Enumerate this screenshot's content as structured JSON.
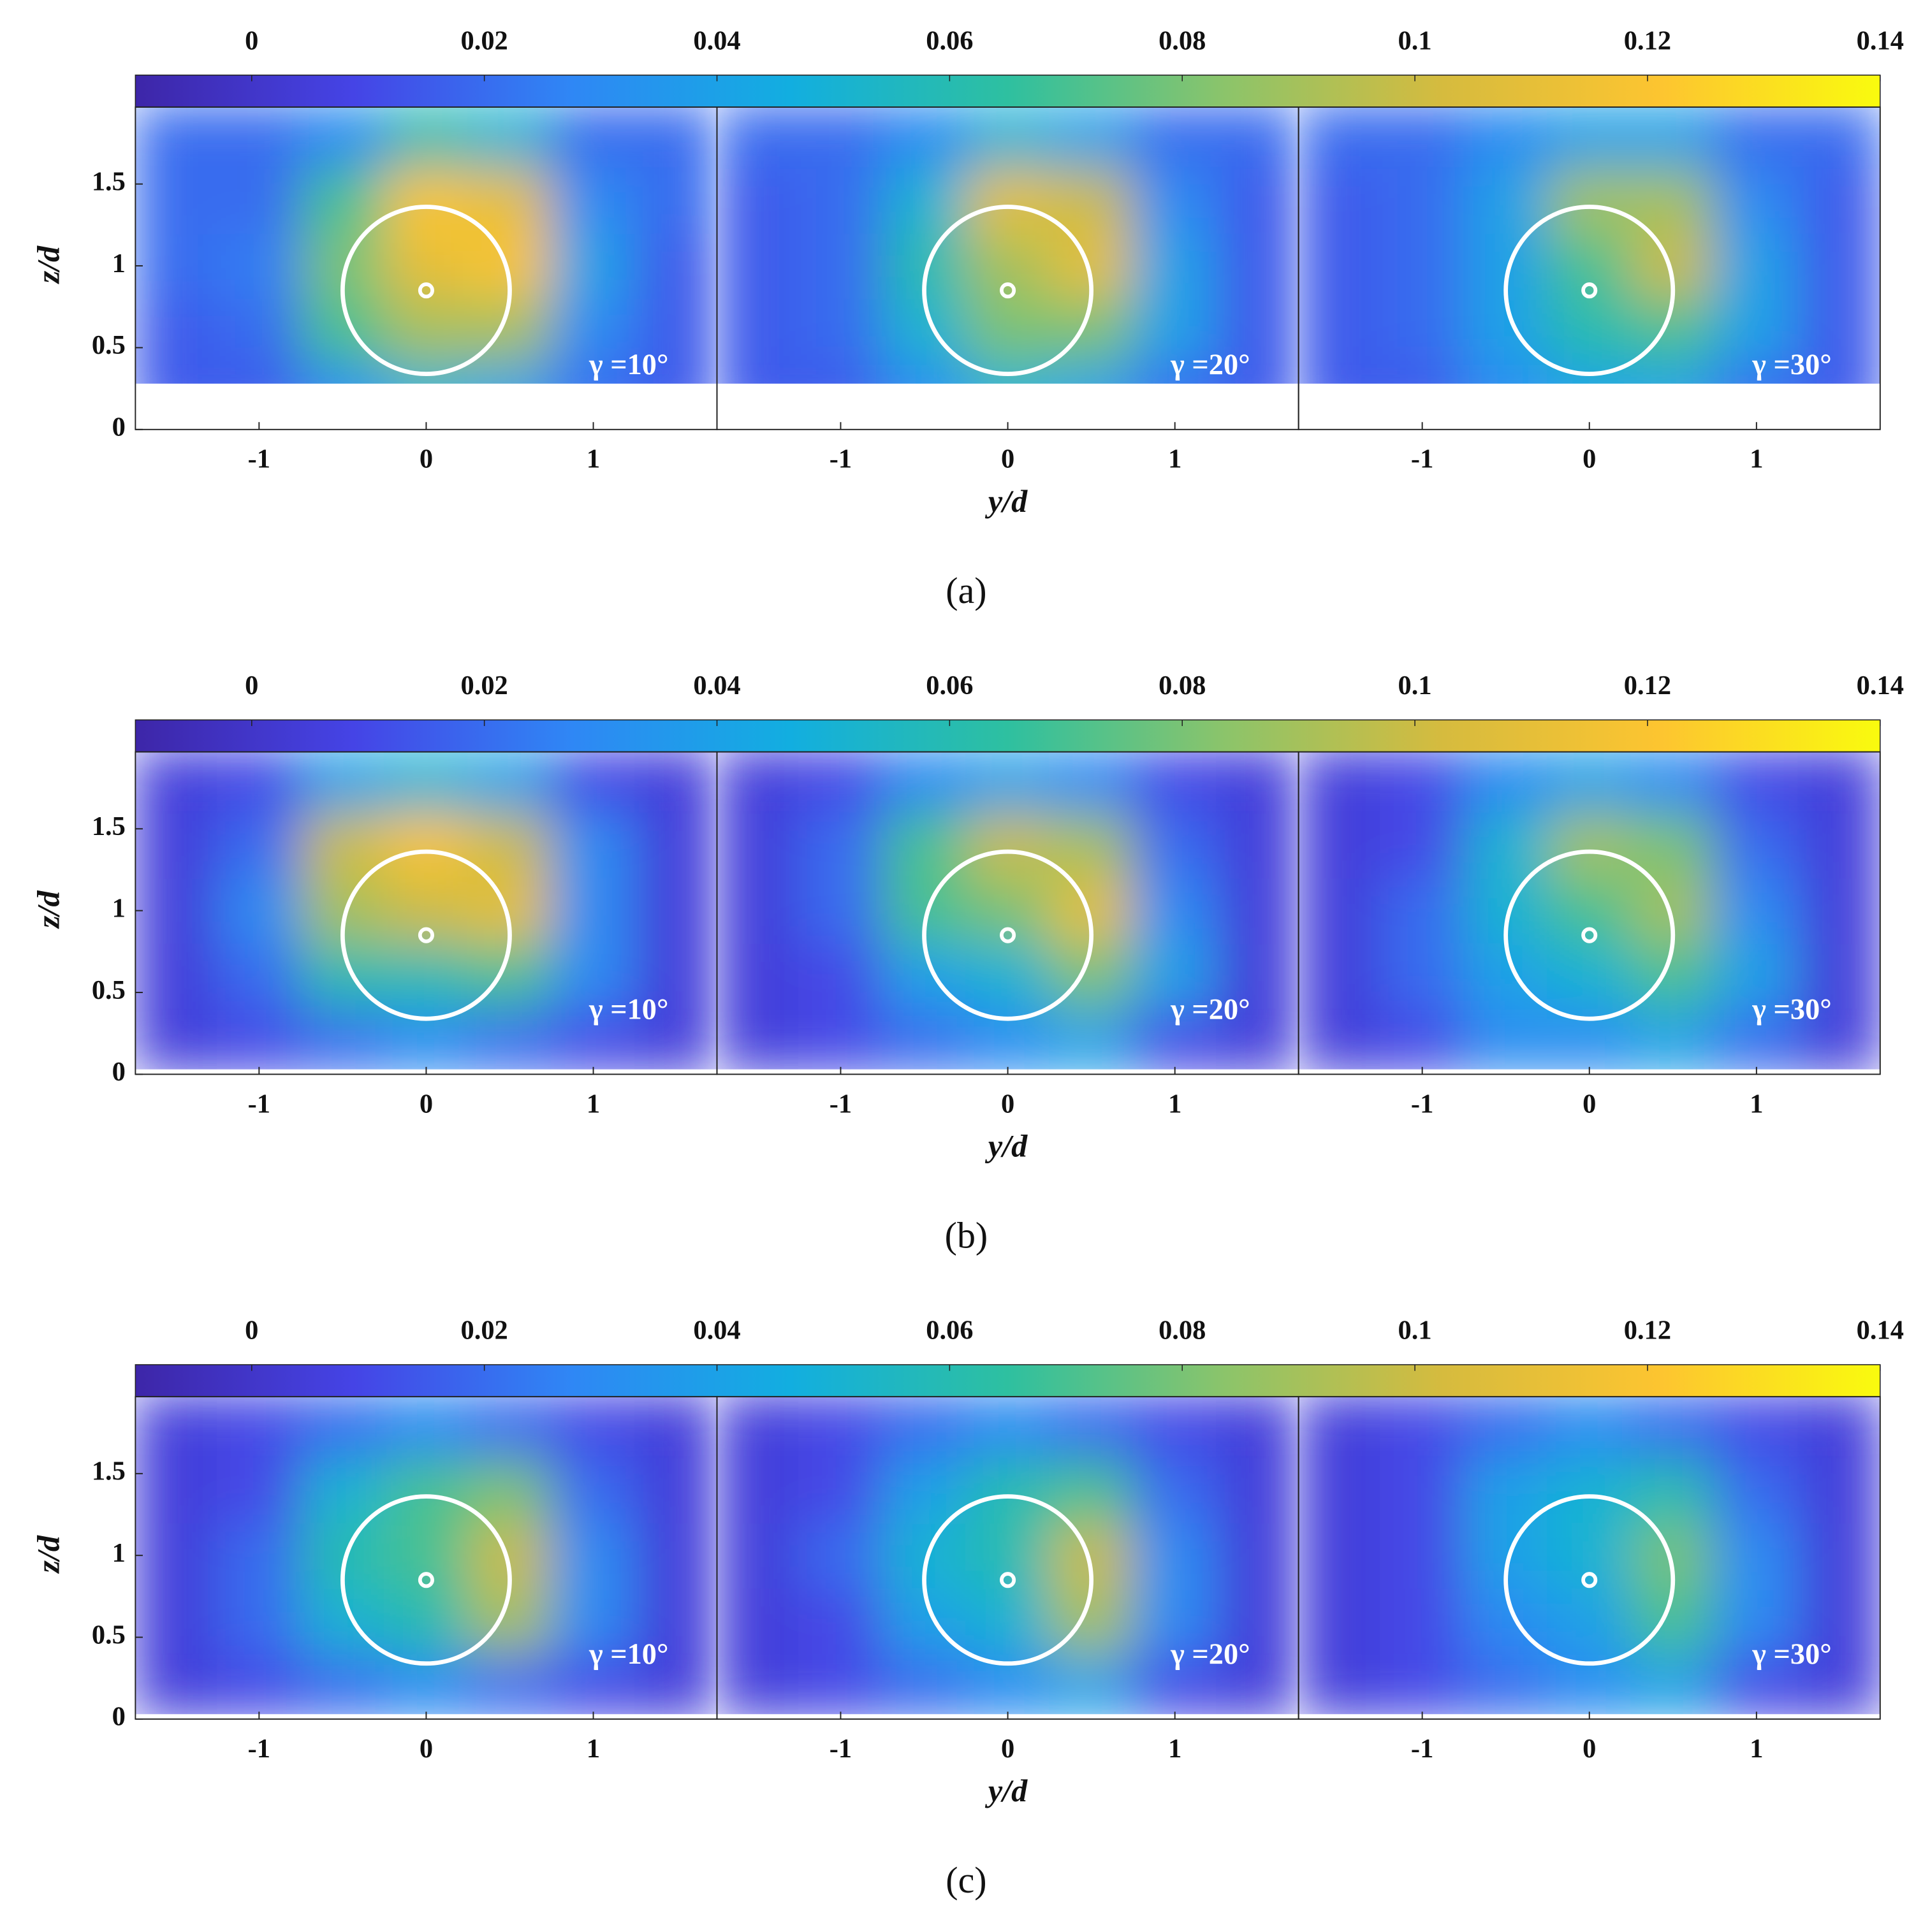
{
  "chart_data": [
    {
      "type": "heatmap",
      "caption": "(a)",
      "xlabel": "y/d",
      "ylabel": "z/d",
      "xlim": [
        -1.74,
        1.74
      ],
      "ylim": [
        0,
        1.97
      ],
      "xticks": [
        -1,
        0,
        1
      ],
      "yticks": [
        0,
        0.5,
        1,
        1.5
      ],
      "clim": [
        -0.01,
        0.14
      ],
      "cticks": [
        0,
        0.02,
        0.04,
        0.06,
        0.08,
        0.1,
        0.12,
        0.14
      ],
      "colormap": [
        "#3d26a8",
        "#4544e6",
        "#2f87f5",
        "#12aee0",
        "#2ec0a0",
        "#8cc46a",
        "#d6bb3e",
        "#fdc530",
        "#f9fb0e"
      ],
      "x": [
        -1.5,
        -1,
        -0.5,
        0,
        0.5,
        1,
        1.5
      ],
      "y": [
        0.2,
        0.6,
        1.0,
        1.4,
        1.8
      ],
      "data_ymin": 0.28,
      "panels": [
        {
          "annotation": "γ =10°",
          "values": [
            [
              0.015,
              0.015,
              0.03,
              0.05,
              0.04,
              0.02,
              0.015
            ],
            [
              0.015,
              0.02,
              0.07,
              0.09,
              0.09,
              0.03,
              0.015
            ],
            [
              0.02,
              0.025,
              0.08,
              0.11,
              0.12,
              0.04,
              0.015
            ],
            [
              0.02,
              0.02,
              0.07,
              0.12,
              0.11,
              0.03,
              0.02
            ],
            [
              0.02,
              0.02,
              0.03,
              0.06,
              0.05,
              0.02,
              0.02
            ]
          ]
        },
        {
          "annotation": "γ =20°",
          "values": [
            [
              0.015,
              0.015,
              0.03,
              0.05,
              0.04,
              0.02,
              0.015
            ],
            [
              0.015,
              0.02,
              0.05,
              0.08,
              0.08,
              0.04,
              0.015
            ],
            [
              0.015,
              0.02,
              0.06,
              0.09,
              0.11,
              0.04,
              0.015
            ],
            [
              0.015,
              0.02,
              0.05,
              0.11,
              0.1,
              0.03,
              0.015
            ],
            [
              0.02,
              0.02,
              0.03,
              0.05,
              0.04,
              0.02,
              0.02
            ]
          ]
        },
        {
          "annotation": "γ =30°",
          "values": [
            [
              0.015,
              0.015,
              0.03,
              0.04,
              0.04,
              0.02,
              0.015
            ],
            [
              0.015,
              0.02,
              0.04,
              0.06,
              0.07,
              0.04,
              0.015
            ],
            [
              0.015,
              0.02,
              0.04,
              0.07,
              0.1,
              0.04,
              0.015
            ],
            [
              0.015,
              0.02,
              0.04,
              0.09,
              0.09,
              0.03,
              0.015
            ],
            [
              0.02,
              0.02,
              0.03,
              0.04,
              0.04,
              0.02,
              0.02
            ]
          ]
        }
      ]
    },
    {
      "type": "heatmap",
      "caption": "(b)",
      "xlabel": "y/d",
      "ylabel": "z/d",
      "xlim": [
        -1.74,
        1.74
      ],
      "ylim": [
        0,
        1.97
      ],
      "xticks": [
        -1,
        0,
        1
      ],
      "yticks": [
        0,
        0.5,
        1,
        1.5
      ],
      "clim": [
        -0.01,
        0.14
      ],
      "cticks": [
        0,
        0.02,
        0.04,
        0.06,
        0.08,
        0.1,
        0.12,
        0.14
      ],
      "colormap": [
        "#3d26a8",
        "#4544e6",
        "#2f87f5",
        "#12aee0",
        "#2ec0a0",
        "#8cc46a",
        "#d6bb3e",
        "#fdc530",
        "#f9fb0e"
      ],
      "x": [
        -1.5,
        -1,
        -0.5,
        0,
        0.5,
        1,
        1.5
      ],
      "y": [
        0.2,
        0.6,
        1.0,
        1.4,
        1.8
      ],
      "data_ymin": 0.03,
      "panels": [
        {
          "annotation": "γ =10°",
          "values": [
            [
              0.005,
              0.01,
              0.02,
              0.03,
              0.02,
              0.01,
              0.005
            ],
            [
              0.005,
              0.02,
              0.06,
              0.06,
              0.07,
              0.03,
              0.005
            ],
            [
              0.005,
              0.03,
              0.09,
              0.1,
              0.11,
              0.03,
              0.005
            ],
            [
              0.005,
              0.02,
              0.1,
              0.12,
              0.1,
              0.03,
              0.005
            ],
            [
              0.005,
              0.01,
              0.04,
              0.05,
              0.04,
              0.01,
              0.005
            ]
          ]
        },
        {
          "annotation": "γ =20°",
          "values": [
            [
              0.005,
              0.01,
              0.02,
              0.03,
              0.04,
              0.01,
              0.005
            ],
            [
              0.005,
              0.01,
              0.04,
              0.05,
              0.08,
              0.04,
              0.005
            ],
            [
              0.005,
              0.02,
              0.07,
              0.08,
              0.11,
              0.03,
              0.005
            ],
            [
              0.005,
              0.02,
              0.07,
              0.1,
              0.09,
              0.02,
              0.005
            ],
            [
              0.005,
              0.01,
              0.03,
              0.04,
              0.03,
              0.01,
              0.005
            ]
          ]
        },
        {
          "annotation": "γ =30°",
          "values": [
            [
              0.005,
              0.01,
              0.03,
              0.03,
              0.04,
              0.02,
              0.005
            ],
            [
              0.005,
              0.02,
              0.04,
              0.05,
              0.07,
              0.04,
              0.005
            ],
            [
              0.005,
              0.02,
              0.05,
              0.07,
              0.09,
              0.03,
              0.005
            ],
            [
              0.005,
              0.01,
              0.05,
              0.09,
              0.08,
              0.02,
              0.005
            ],
            [
              0.005,
              0.01,
              0.03,
              0.04,
              0.03,
              0.01,
              0.005
            ]
          ]
        }
      ]
    },
    {
      "type": "heatmap",
      "caption": "(c)",
      "xlabel": "y/d",
      "ylabel": "z/d",
      "xlim": [
        -1.74,
        1.74
      ],
      "ylim": [
        0,
        1.97
      ],
      "xticks": [
        -1,
        0,
        1
      ],
      "yticks": [
        0,
        0.5,
        1,
        1.5
      ],
      "clim": [
        -0.01,
        0.14
      ],
      "cticks": [
        0,
        0.02,
        0.04,
        0.06,
        0.08,
        0.1,
        0.12,
        0.14
      ],
      "colormap": [
        "#3d26a8",
        "#4544e6",
        "#2f87f5",
        "#12aee0",
        "#2ec0a0",
        "#8cc46a",
        "#d6bb3e",
        "#fdc530",
        "#f9fb0e"
      ],
      "x": [
        -1.5,
        -1,
        -0.5,
        0,
        0.5,
        1,
        1.5
      ],
      "y": [
        0.2,
        0.6,
        1.0,
        1.4,
        1.8
      ],
      "data_ymin": 0.03,
      "panels": [
        {
          "annotation": "γ =10°",
          "values": [
            [
              0.005,
              0.01,
              0.02,
              0.03,
              0.02,
              0.01,
              0.005
            ],
            [
              0.005,
              0.02,
              0.05,
              0.06,
              0.09,
              0.03,
              0.005
            ],
            [
              0.005,
              0.02,
              0.06,
              0.07,
              0.1,
              0.03,
              0.005
            ],
            [
              0.005,
              0.01,
              0.05,
              0.07,
              0.08,
              0.02,
              0.005
            ],
            [
              0.005,
              0.01,
              0.02,
              0.03,
              0.02,
              0.01,
              0.005
            ]
          ]
        },
        {
          "annotation": "γ =20°",
          "values": [
            [
              0.005,
              0.01,
              0.02,
              0.03,
              0.04,
              0.01,
              0.005
            ],
            [
              0.005,
              0.01,
              0.04,
              0.05,
              0.09,
              0.03,
              0.005
            ],
            [
              0.005,
              0.02,
              0.05,
              0.06,
              0.1,
              0.03,
              0.005
            ],
            [
              0.005,
              0.01,
              0.04,
              0.06,
              0.07,
              0.02,
              0.005
            ],
            [
              0.005,
              0.01,
              0.02,
              0.03,
              0.02,
              0.01,
              0.005
            ]
          ]
        },
        {
          "annotation": "γ =30°",
          "values": [
            [
              0.005,
              0.01,
              0.02,
              0.03,
              0.04,
              0.01,
              0.005
            ],
            [
              0.005,
              0.01,
              0.03,
              0.04,
              0.07,
              0.03,
              0.005
            ],
            [
              0.005,
              0.01,
              0.04,
              0.05,
              0.08,
              0.03,
              0.005
            ],
            [
              0.005,
              0.01,
              0.04,
              0.05,
              0.06,
              0.02,
              0.005
            ],
            [
              0.005,
              0.01,
              0.02,
              0.03,
              0.02,
              0.01,
              0.005
            ]
          ]
        }
      ]
    }
  ]
}
